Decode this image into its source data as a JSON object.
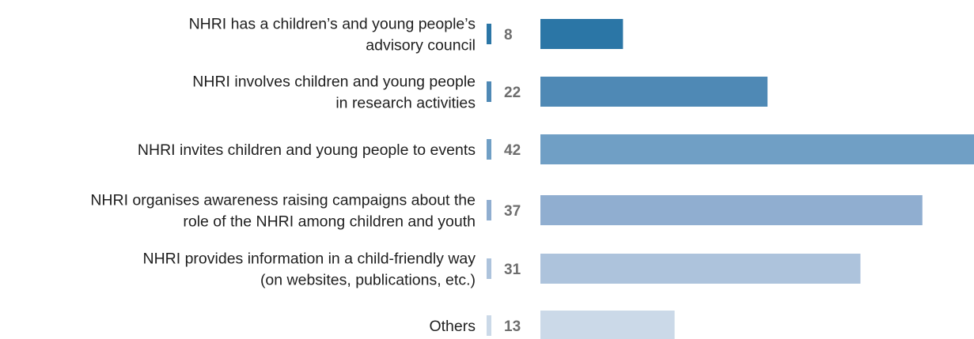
{
  "chart_data": {
    "type": "bar",
    "orientation": "horizontal",
    "categories": [
      [
        "NHRI has a children’s and young people’s",
        "advisory council"
      ],
      [
        "NHRI involves children and young people",
        "in research activities"
      ],
      [
        "NHRI invites children and young people to events"
      ],
      [
        "NHRI organises awareness raising campaigns about the",
        "role of the NHRI among children and youth"
      ],
      [
        "NHRI provides information in a child-friendly way",
        "(on websites, publications, etc.)"
      ],
      [
        "Others"
      ]
    ],
    "values": [
      8,
      22,
      42,
      37,
      31,
      13
    ],
    "colors": [
      "#2b76a6",
      "#4f89b5",
      "#709fc5",
      "#90aed0",
      "#adc3dc",
      "#cbd9e8"
    ],
    "xlim": [
      0,
      42
    ],
    "grid": false,
    "legend": "none"
  }
}
